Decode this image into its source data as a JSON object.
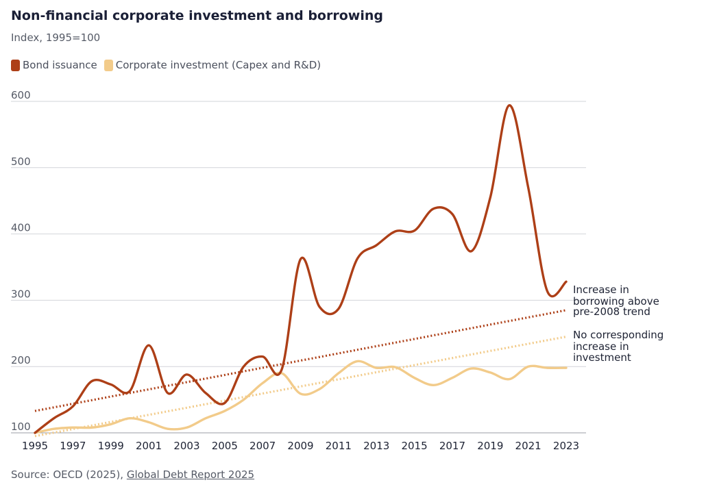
{
  "header": {
    "title": "Non-financial corporate investment and borrowing",
    "subtitle": "Index, 1995=100"
  },
  "legend": {
    "items": [
      {
        "label": "Bond issuance",
        "color": "#ad3f17"
      },
      {
        "label": "Corporate investment (Capex and R&D)",
        "color": "#f2cb8a"
      }
    ]
  },
  "footer": {
    "source_prefix": "Source: OECD (2025), ",
    "source_link": "Global Debt Report 2025"
  },
  "chart_data": {
    "type": "line",
    "title": "Non-financial corporate investment and borrowing",
    "subtitle": "Index, 1995=100",
    "xlim": [
      1995,
      2023
    ],
    "ylim": [
      100,
      600
    ],
    "x_ticks": [
      1995,
      1997,
      1999,
      2001,
      2003,
      2005,
      2007,
      2009,
      2011,
      2013,
      2015,
      2017,
      2019,
      2021,
      2023
    ],
    "y_ticks": [
      100,
      200,
      300,
      400,
      500,
      600
    ],
    "grid": "horizontal",
    "legend_position": "top-left",
    "x": [
      1995,
      1996,
      1997,
      1998,
      1999,
      2000,
      2001,
      2002,
      2003,
      2004,
      2005,
      2006,
      2007,
      2008,
      2009,
      2010,
      2011,
      2012,
      2013,
      2014,
      2015,
      2016,
      2017,
      2018,
      2019,
      2020,
      2021,
      2022,
      2023
    ],
    "series": [
      {
        "name": "Bond issuance",
        "color": "#ad3f17",
        "values": [
          100,
          122,
          140,
          178,
          173,
          163,
          232,
          160,
          188,
          160,
          145,
          200,
          215,
          195,
          362,
          290,
          287,
          363,
          383,
          404,
          405,
          438,
          430,
          374,
          455,
          594,
          470,
          314,
          328
        ]
      },
      {
        "name": "Corporate investment (Capex and R&D)",
        "color": "#f2cb8a",
        "values": [
          100,
          106,
          108,
          108,
          113,
          122,
          116,
          106,
          108,
          122,
          133,
          150,
          175,
          190,
          159,
          166,
          190,
          208,
          198,
          199,
          183,
          172,
          183,
          197,
          191,
          181,
          200,
          198,
          198
        ]
      }
    ],
    "trend_lines": [
      {
        "color": "#ad3f17",
        "from": [
          1995,
          133
        ],
        "to": [
          2023,
          285
        ],
        "annotation": [
          "Increase in",
          "borrowing above",
          "pre-2008 trend"
        ]
      },
      {
        "color": "#f2cb8a",
        "from": [
          1995,
          95
        ],
        "to": [
          2023,
          245
        ],
        "annotation": [
          "No corresponding",
          "increase in",
          "investment"
        ]
      }
    ]
  }
}
